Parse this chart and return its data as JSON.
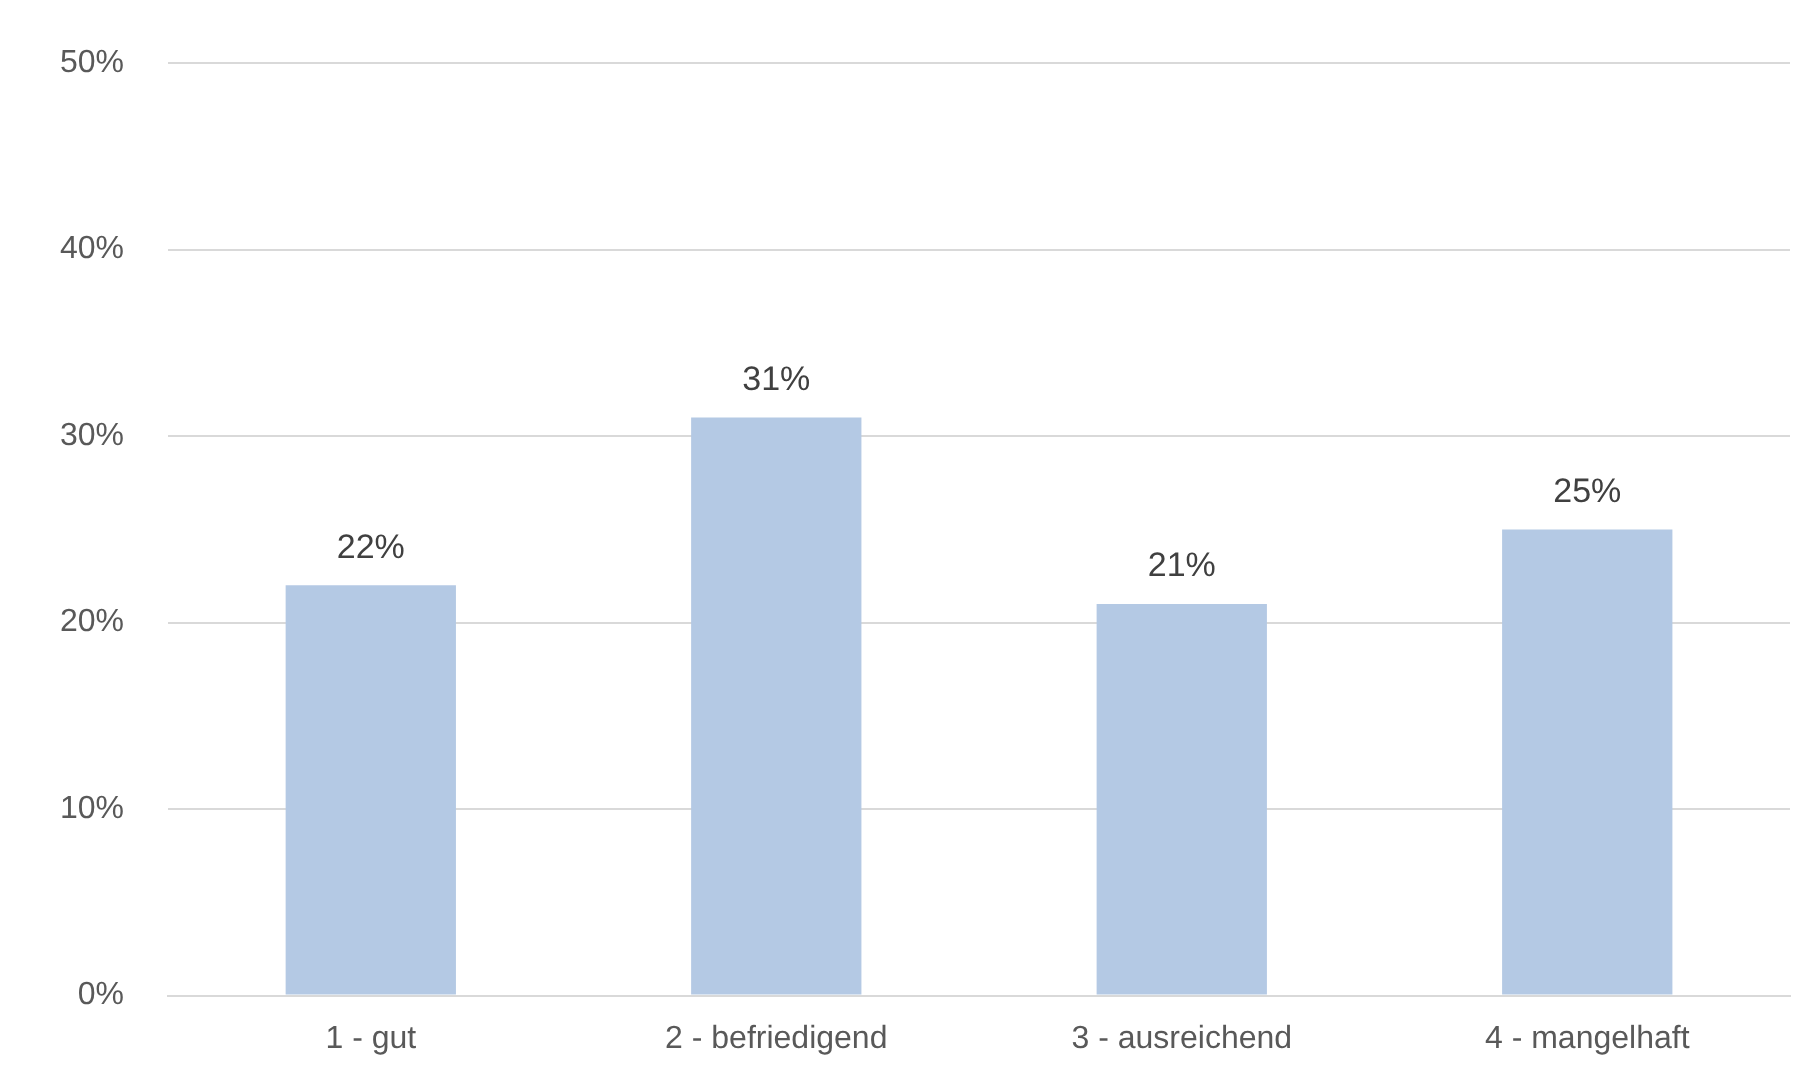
{
  "chart_data": {
    "type": "bar",
    "categories": [
      "1 - gut",
      "2 - befriedigend",
      "3 - ausreichend",
      "4 - mangelhaft"
    ],
    "values": [
      22,
      31,
      21,
      25
    ],
    "color": "#b4c9e4",
    "value_labels": [
      "22%",
      "31%",
      "21%",
      "25%"
    ],
    "ylim": [
      0,
      50
    ],
    "yticks": [
      {
        "value": 0,
        "label": "0%"
      },
      {
        "value": 10,
        "label": "10%"
      },
      {
        "value": 20,
        "label": "20%"
      },
      {
        "value": 30,
        "label": "30%"
      },
      {
        "value": 40,
        "label": "40%"
      },
      {
        "value": 50,
        "label": "50%"
      }
    ],
    "grid": "y",
    "legend": false
  }
}
